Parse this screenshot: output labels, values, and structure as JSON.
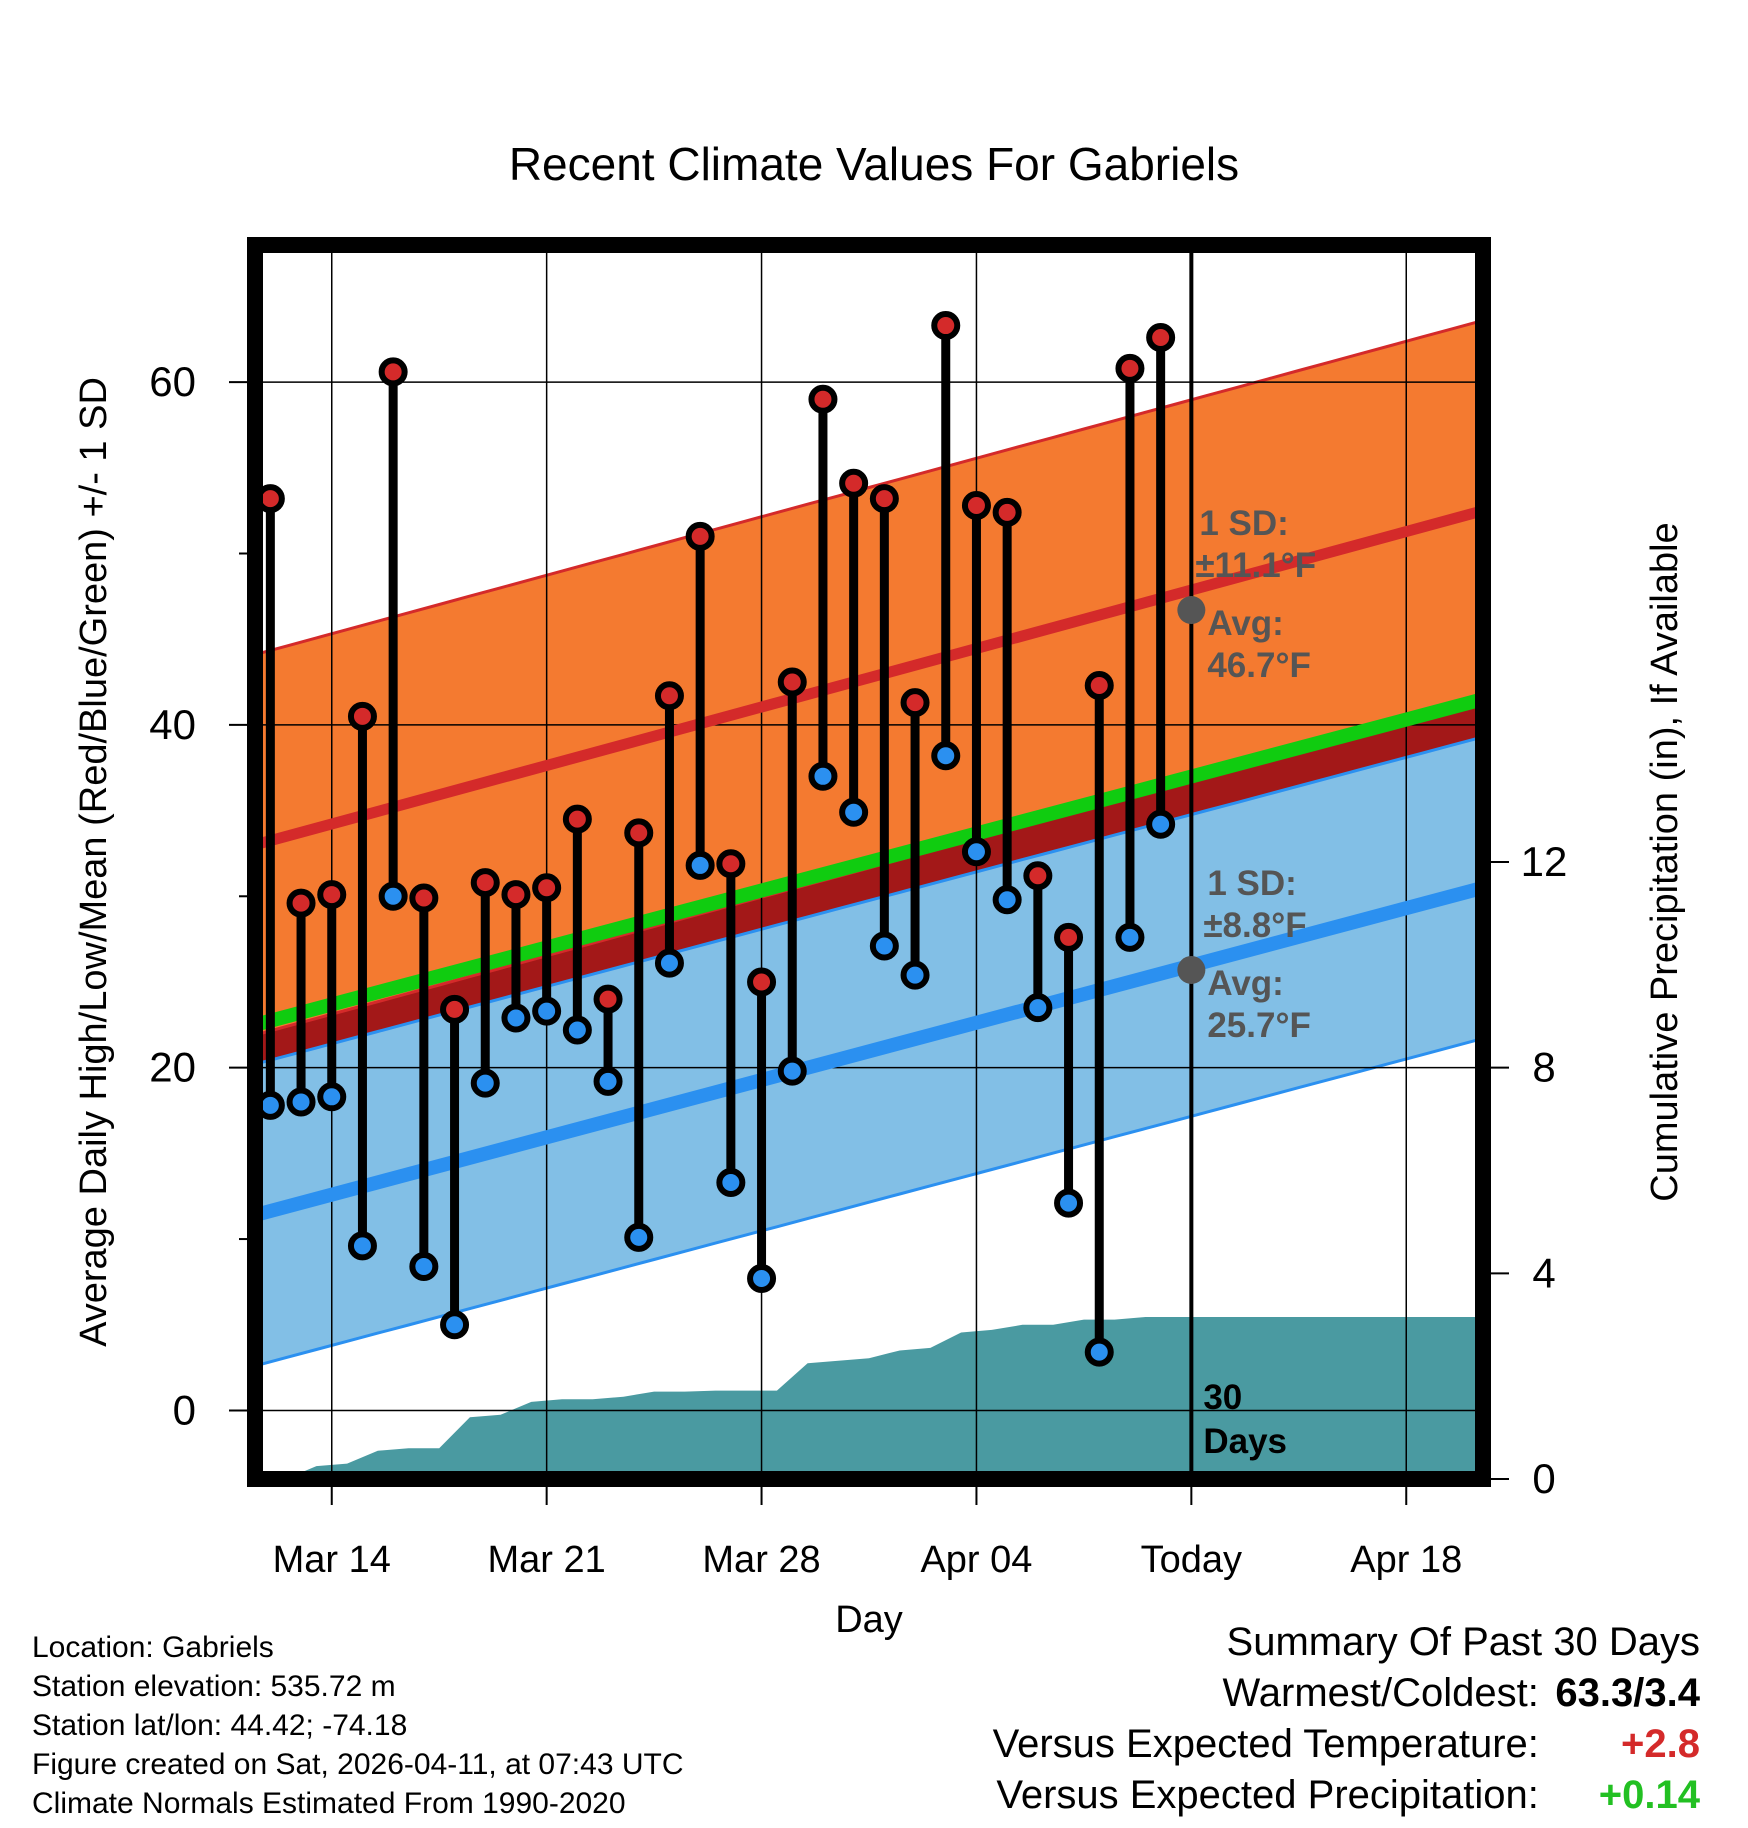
{
  "chart_data": {
    "type": "climate-range",
    "title": "Recent Climate Values For Gabriels",
    "xlabel": "Day",
    "ylabel": "Average Daily High/Low/Mean (Red/Blue/Green) +/- 1 SD",
    "y2label": "Cumulative Precipitation (in), If Available",
    "xlim": [
      -2.5,
      37.5
    ],
    "ylim": [
      -4,
      68
    ],
    "y2lim": [
      0,
      24
    ],
    "x_ticks": [
      {
        "x": 0,
        "label": "Mar 14"
      },
      {
        "x": 7,
        "label": "Mar 21"
      },
      {
        "x": 14,
        "label": "Mar 28"
      },
      {
        "x": 21,
        "label": "Apr 04"
      },
      {
        "x": 28,
        "label": "Today"
      },
      {
        "x": 35,
        "label": "Apr 18"
      }
    ],
    "y_ticks": [
      0,
      20,
      40,
      60
    ],
    "y2_ticks": [
      0,
      4,
      8,
      12
    ],
    "today_x": 28,
    "days_label": [
      "30",
      "Days"
    ],
    "observed": {
      "x": [
        -2,
        -1,
        0,
        1,
        2,
        3,
        4,
        5,
        6,
        7,
        8,
        9,
        10,
        11,
        12,
        13,
        14,
        15,
        16,
        17,
        18,
        19,
        20,
        21,
        22,
        23,
        24,
        25,
        26,
        27
      ],
      "high": [
        53.2,
        29.6,
        30.1,
        40.5,
        60.6,
        29.9,
        23.4,
        30.8,
        30.1,
        30.5,
        34.5,
        24.0,
        33.7,
        41.7,
        51.0,
        31.9,
        25.0,
        42.5,
        59.0,
        54.1,
        53.2,
        41.3,
        63.3,
        52.8,
        52.4,
        31.2,
        27.6,
        42.3,
        60.8,
        62.6
      ],
      "low": [
        17.8,
        18.0,
        18.3,
        9.6,
        30.0,
        8.4,
        5.0,
        19.1,
        22.9,
        23.3,
        22.2,
        19.2,
        10.1,
        26.1,
        31.8,
        13.3,
        7.7,
        19.8,
        37.0,
        34.9,
        27.1,
        25.4,
        38.2,
        32.6,
        29.8,
        23.5,
        12.1,
        3.4,
        27.6,
        34.2
      ]
    },
    "normals": {
      "x": [
        -2.5,
        37.5
      ],
      "mean": [
        22.5,
        41.5
      ],
      "high": [
        33.0,
        52.5
      ],
      "low": [
        11.4,
        30.5
      ],
      "high_sd": 11.1,
      "low_sd": 8.8
    },
    "precip": {
      "x": [
        -1.5,
        -0.5,
        0.5,
        1.5,
        2.5,
        3.5,
        4.5,
        5.5,
        6.5,
        7.5,
        8.5,
        9.5,
        10.5,
        11.5,
        12.5,
        13.5,
        14.5,
        15.5,
        16.5,
        17.5,
        18.5,
        19.5,
        20.5,
        21.5,
        22.5,
        23.5,
        24.5,
        25.5,
        26.5,
        27.5,
        37.5
      ],
      "cumulative": [
        0.0,
        0.25,
        0.3,
        0.55,
        0.6,
        0.6,
        1.2,
        1.25,
        1.5,
        1.55,
        1.55,
        1.6,
        1.7,
        1.7,
        1.72,
        1.72,
        1.72,
        2.25,
        2.3,
        2.35,
        2.5,
        2.55,
        2.85,
        2.9,
        3.0,
        3.0,
        3.1,
        3.1,
        3.15,
        3.15,
        3.15
      ]
    },
    "annotations": {
      "high_sd_label": "1 SD:",
      "high_sd_value": "±11.1°F",
      "high_avg_label": "Avg:",
      "high_avg_value": "46.7°F",
      "low_sd_label": "1 SD:",
      "low_sd_value": "±8.8°F",
      "low_avg_label": "Avg:",
      "low_avg_value": "25.7°F",
      "high_avg": 46.7,
      "low_avg": 25.7
    }
  },
  "colors": {
    "high_band": "#f47a30",
    "high_line": "#d42a2a",
    "low_band": "#82bfe6",
    "low_line": "#2b90f0",
    "mean_line": "#10cc10",
    "overlap": "#a31818",
    "precip": "#4a9aa1",
    "annotation": "#555555",
    "high_dot": "#d42a2a",
    "low_dot": "#2b90f0",
    "positive_temp": "#d42a2a",
    "positive_precip": "#22c022"
  },
  "info": {
    "location": "Location: Gabriels",
    "elevation": "Station elevation: 535.72 m",
    "latlon": "Station lat/lon: 44.42; -74.18",
    "created": "Figure created on Sat, 2026-04-11, at 07:43 UTC",
    "normals": "Climate Normals Estimated From 1990-2020"
  },
  "summary": {
    "title": "Summary Of Past 30 Days",
    "warmest_label": "Warmest/Coldest:",
    "warmest_value": "63.3/3.4",
    "temp_label": "Versus Expected Temperature:",
    "temp_value": "+2.8",
    "precip_label": "Versus Expected Precipitation:",
    "precip_value": "+0.14"
  }
}
